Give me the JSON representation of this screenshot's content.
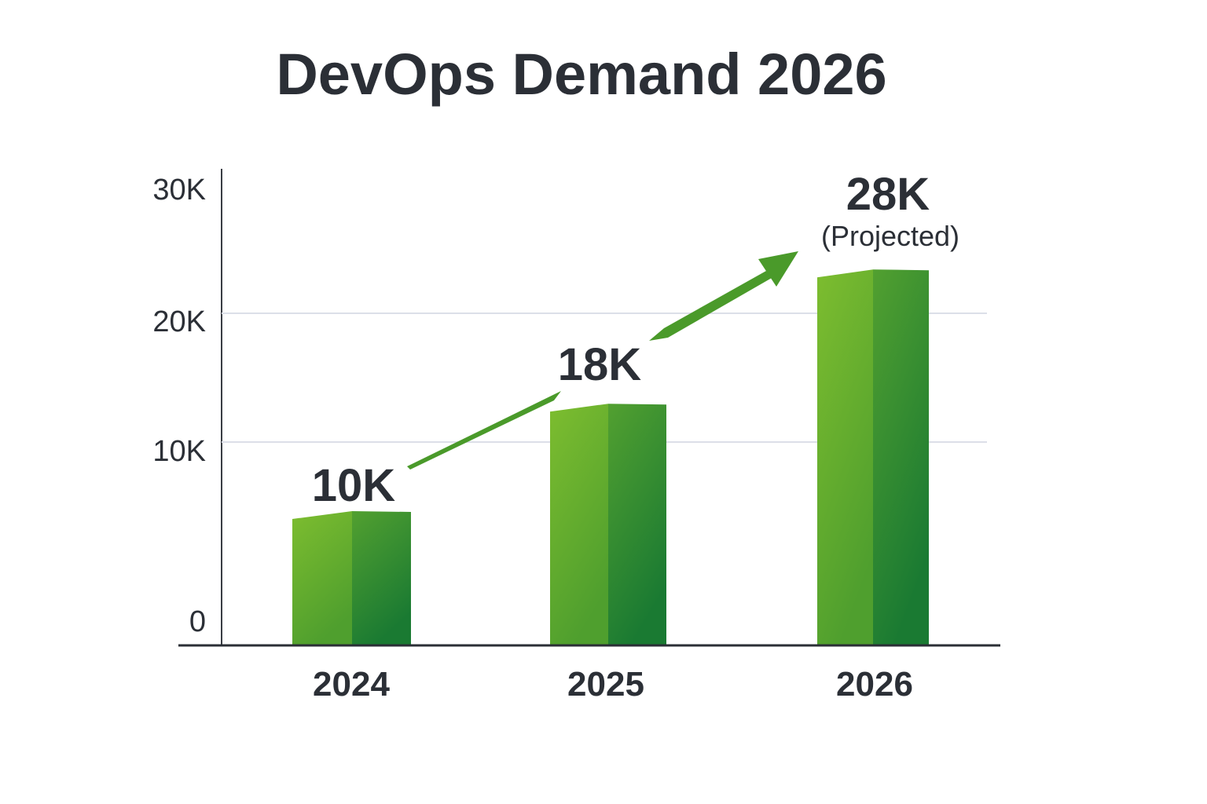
{
  "chart_data": {
    "type": "bar",
    "title": "DevOps Demand 2026",
    "xlabel": "",
    "ylabel": "",
    "categories": [
      "2024",
      "2025",
      "2026"
    ],
    "values": [
      10000,
      18000,
      28000
    ],
    "data_labels": [
      "10K",
      "18K",
      "28K"
    ],
    "annotations": [
      "(Projected)"
    ],
    "y_ticks": [
      "0",
      "10K",
      "20K",
      "30K"
    ],
    "ylim": [
      0,
      30000
    ],
    "grid": true,
    "legend": "none",
    "trend_arrow": true,
    "colors": {
      "bar_light": "#7bbb2f",
      "bar_dark": "#1b7b32",
      "arrow": "#4a9a2a",
      "text": "#2b2f36",
      "grid": "#dcdfe8"
    }
  }
}
